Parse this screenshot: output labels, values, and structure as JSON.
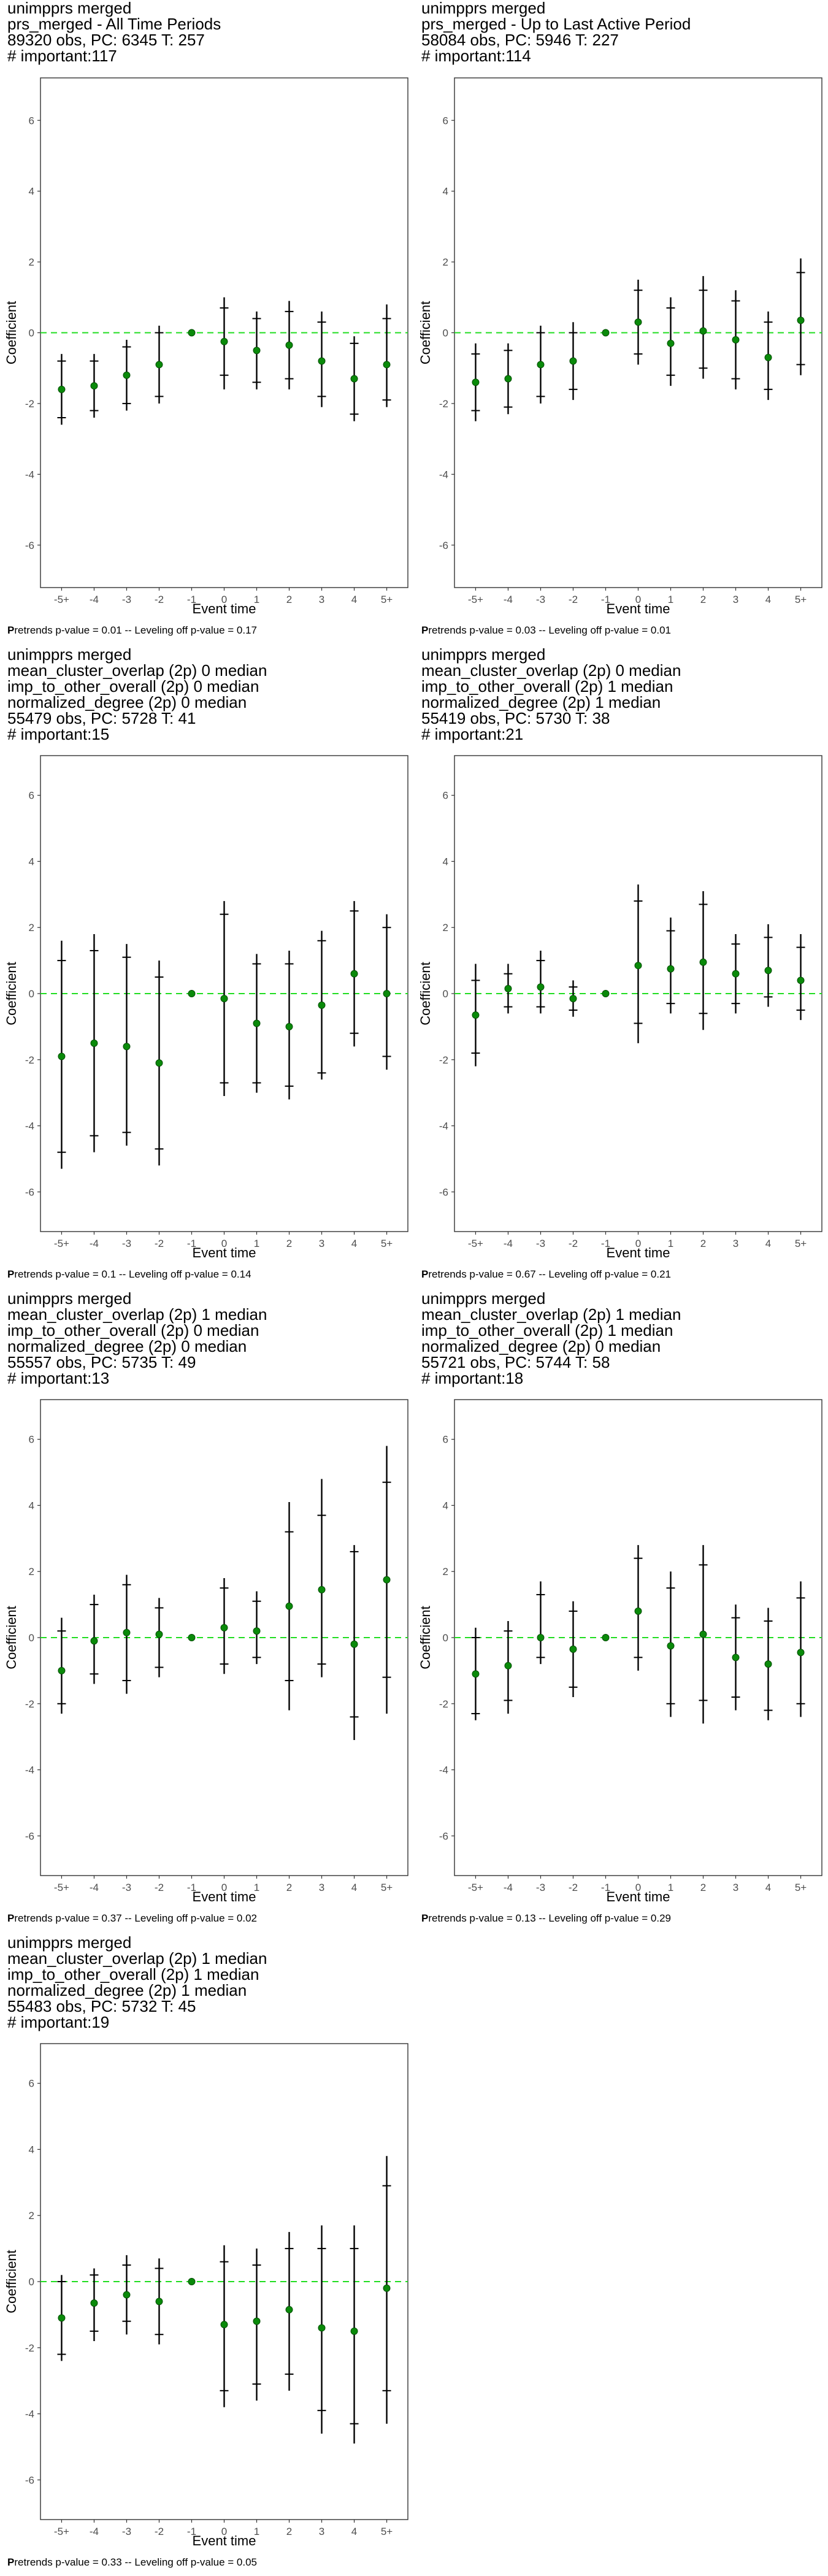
{
  "chart_data": [
    {
      "type": "errorbar",
      "title_lines": [
        " unimpprs merged",
        "prs_merged - All Time Periods",
        "89320 obs, PC: 6345 T: 257",
        "# important:117"
      ],
      "xlabel": "Event time",
      "ylabel": "Coefficient",
      "categories": [
        "-5+",
        "-4",
        "-3",
        "-2",
        "-1",
        "0",
        "1",
        "2",
        "3",
        "4",
        "5+"
      ],
      "yticks": [
        -6,
        -4,
        -2,
        0,
        2,
        4,
        6
      ],
      "ylim": [
        -7.2,
        7.2
      ],
      "estimate": [
        -1.6,
        -1.5,
        -1.2,
        -0.9,
        0,
        -0.25,
        -0.5,
        -0.35,
        -0.8,
        -1.3,
        -0.9
      ],
      "ci95_low": [
        -2.6,
        -2.4,
        -2.2,
        -2.0,
        0,
        -1.6,
        -1.6,
        -1.6,
        -2.1,
        -2.5,
        -2.1
      ],
      "ci95_high": [
        -0.6,
        -0.6,
        -0.2,
        0.2,
        0,
        1.0,
        0.6,
        0.9,
        0.6,
        -0.1,
        0.8
      ],
      "ci90_low": [
        -2.4,
        -2.2,
        -2.0,
        -1.8,
        0,
        -1.2,
        -1.4,
        -1.3,
        -1.8,
        -2.3,
        -1.9
      ],
      "ci90_high": [
        -0.8,
        -0.8,
        -0.4,
        0.0,
        0,
        0.7,
        0.4,
        0.6,
        0.3,
        -0.3,
        0.4
      ],
      "footer_bold": "P",
      "footer": "retrends p-value = 0.01 -- Leveling off p-value = 0.17"
    },
    {
      "type": "errorbar",
      "title_lines": [
        " unimpprs merged",
        "prs_merged - Up to Last Active Period",
        "58084 obs, PC: 5946 T: 227",
        "# important:114"
      ],
      "xlabel": "Event time",
      "ylabel": "Coefficient",
      "categories": [
        "-5+",
        "-4",
        "-3",
        "-2",
        "-1",
        "0",
        "1",
        "2",
        "3",
        "4",
        "5+"
      ],
      "yticks": [
        -6,
        -4,
        -2,
        0,
        2,
        4,
        6
      ],
      "ylim": [
        -7.2,
        7.2
      ],
      "estimate": [
        -1.4,
        -1.3,
        -0.9,
        -0.8,
        0,
        0.3,
        -0.3,
        0.05,
        -0.2,
        -0.7,
        0.35
      ],
      "ci95_low": [
        -2.5,
        -2.3,
        -2.0,
        -1.9,
        0,
        -0.9,
        -1.5,
        -1.3,
        -1.6,
        -1.9,
        -1.2
      ],
      "ci95_high": [
        -0.3,
        -0.3,
        0.2,
        0.3,
        0,
        1.5,
        1.0,
        1.6,
        1.2,
        0.6,
        2.1
      ],
      "ci90_low": [
        -2.2,
        -2.1,
        -1.8,
        -1.6,
        0,
        -0.6,
        -1.2,
        -1.0,
        -1.3,
        -1.6,
        -0.9
      ],
      "ci90_high": [
        -0.6,
        -0.5,
        0.0,
        0.0,
        0,
        1.2,
        0.7,
        1.2,
        0.9,
        0.3,
        1.7
      ],
      "footer_bold": "P",
      "footer": "retrends p-value = 0.03 -- Leveling off p-value = 0.01"
    },
    {
      "type": "errorbar",
      "title_lines": [
        " unimpprs merged",
        "mean_cluster_overlap (2p) 0 median",
        "imp_to_other_overall (2p) 0 median",
        "normalized_degree (2p) 0 median",
        "55479 obs, PC: 5728 T: 41",
        "# important:15"
      ],
      "xlabel": "Event time",
      "ylabel": "Coefficient",
      "categories": [
        "-5+",
        "-4",
        "-3",
        "-2",
        "-1",
        "0",
        "1",
        "2",
        "3",
        "4",
        "5+"
      ],
      "yticks": [
        -6,
        -4,
        -2,
        0,
        2,
        4,
        6
      ],
      "ylim": [
        -7.2,
        7.2
      ],
      "estimate": [
        -1.9,
        -1.5,
        -1.6,
        -2.1,
        0,
        -0.15,
        -0.9,
        -1.0,
        -0.35,
        0.6,
        0.0
      ],
      "ci95_low": [
        -5.3,
        -4.8,
        -4.6,
        -5.2,
        0,
        -3.1,
        -3.0,
        -3.2,
        -2.6,
        -1.6,
        -2.3
      ],
      "ci95_high": [
        1.6,
        1.8,
        1.5,
        1.0,
        0,
        2.8,
        1.2,
        1.3,
        1.9,
        2.8,
        2.4
      ],
      "ci90_low": [
        -4.8,
        -4.3,
        -4.2,
        -4.7,
        0,
        -2.7,
        -2.7,
        -2.8,
        -2.4,
        -1.2,
        -1.9
      ],
      "ci90_high": [
        1.0,
        1.3,
        1.1,
        0.5,
        0,
        2.4,
        0.9,
        0.9,
        1.6,
        2.5,
        2.0
      ],
      "footer_bold": "P",
      "footer": "retrends p-value = 0.1 -- Leveling off p-value = 0.14"
    },
    {
      "type": "errorbar",
      "title_lines": [
        " unimpprs merged",
        "mean_cluster_overlap (2p) 0 median",
        "imp_to_other_overall (2p) 1 median",
        "normalized_degree (2p) 1 median",
        "55419 obs, PC: 5730 T: 38",
        "# important:21"
      ],
      "xlabel": "Event time",
      "ylabel": "Coefficient",
      "categories": [
        "-5+",
        "-4",
        "-3",
        "-2",
        "-1",
        "0",
        "1",
        "2",
        "3",
        "4",
        "5+"
      ],
      "yticks": [
        -6,
        -4,
        -2,
        0,
        2,
        4,
        6
      ],
      "ylim": [
        -7.2,
        7.2
      ],
      "estimate": [
        -0.65,
        0.15,
        0.2,
        -0.15,
        0,
        0.85,
        0.75,
        0.95,
        0.6,
        0.7,
        0.4
      ],
      "ci95_low": [
        -2.2,
        -0.6,
        -0.6,
        -0.7,
        0,
        -1.5,
        -0.6,
        -1.1,
        -0.6,
        -0.4,
        -0.8
      ],
      "ci95_high": [
        0.9,
        0.9,
        1.3,
        0.4,
        0,
        3.3,
        2.3,
        3.1,
        1.8,
        2.1,
        1.8
      ],
      "ci90_low": [
        -1.8,
        -0.4,
        -0.4,
        -0.5,
        0,
        -0.9,
        -0.3,
        -0.6,
        -0.3,
        -0.1,
        -0.5
      ],
      "ci90_high": [
        0.4,
        0.6,
        1.0,
        0.2,
        0,
        2.8,
        1.9,
        2.7,
        1.5,
        1.7,
        1.4
      ],
      "footer_bold": "P",
      "footer": "retrends p-value = 0.67 -- Leveling off p-value = 0.21"
    },
    {
      "type": "errorbar",
      "title_lines": [
        " unimpprs merged",
        "mean_cluster_overlap (2p) 1 median",
        "imp_to_other_overall (2p) 0 median",
        "normalized_degree (2p) 0 median",
        "55557 obs, PC: 5735 T: 49",
        "# important:13"
      ],
      "xlabel": "Event time",
      "ylabel": "Coefficient",
      "categories": [
        "-5+",
        "-4",
        "-3",
        "-2",
        "-1",
        "0",
        "1",
        "2",
        "3",
        "4",
        "5+"
      ],
      "yticks": [
        -6,
        -4,
        -2,
        0,
        2,
        4,
        6
      ],
      "ylim": [
        -7.2,
        7.2
      ],
      "estimate": [
        -1.0,
        -0.1,
        0.15,
        0.1,
        0,
        0.3,
        0.2,
        0.95,
        1.45,
        -0.2,
        1.75
      ],
      "ci95_low": [
        -2.3,
        -1.4,
        -1.7,
        -1.2,
        0,
        -1.1,
        -0.8,
        -2.2,
        -1.2,
        -3.1,
        -2.3
      ],
      "ci95_high": [
        0.6,
        1.3,
        1.9,
        1.2,
        0,
        1.8,
        1.4,
        4.1,
        4.8,
        2.8,
        5.8
      ],
      "ci90_low": [
        -2.0,
        -1.1,
        -1.3,
        -0.9,
        0,
        -0.8,
        -0.6,
        -1.3,
        -0.8,
        -2.4,
        -1.2
      ],
      "ci90_high": [
        0.2,
        1.0,
        1.6,
        0.9,
        0,
        1.5,
        1.1,
        3.2,
        3.7,
        2.6,
        4.7
      ],
      "footer_bold": "P",
      "footer": "retrends p-value = 0.37 -- Leveling off p-value = 0.02"
    },
    {
      "type": "errorbar",
      "title_lines": [
        " unimpprs merged",
        "mean_cluster_overlap (2p) 1 median",
        "imp_to_other_overall (2p) 1 median",
        "normalized_degree (2p) 0 median",
        "55721 obs, PC: 5744 T: 58",
        "# important:18"
      ],
      "xlabel": "Event time",
      "ylabel": "Coefficient",
      "categories": [
        "-5+",
        "-4",
        "-3",
        "-2",
        "-1",
        "0",
        "1",
        "2",
        "3",
        "4",
        "5+"
      ],
      "yticks": [
        -6,
        -4,
        -2,
        0,
        2,
        4,
        6
      ],
      "ylim": [
        -7.2,
        7.2
      ],
      "estimate": [
        -1.1,
        -0.85,
        0.0,
        -0.35,
        0,
        0.8,
        -0.25,
        0.1,
        -0.6,
        -0.8,
        -0.45
      ],
      "ci95_low": [
        -2.5,
        -2.3,
        -0.8,
        -1.8,
        0,
        -1.0,
        -2.4,
        -2.6,
        -2.2,
        -2.5,
        -2.4
      ],
      "ci95_high": [
        0.3,
        0.5,
        1.7,
        1.1,
        0,
        2.8,
        2.0,
        2.8,
        1.0,
        0.9,
        1.7
      ],
      "ci90_low": [
        -2.3,
        -1.9,
        -0.6,
        -1.5,
        0,
        -0.6,
        -2.0,
        -1.9,
        -1.8,
        -2.2,
        -2.0
      ],
      "ci90_high": [
        0.0,
        0.2,
        1.3,
        0.8,
        0,
        2.4,
        1.5,
        2.2,
        0.6,
        0.5,
        1.2
      ],
      "footer_bold": "P",
      "footer": "retrends p-value = 0.13 -- Leveling off p-value = 0.29"
    },
    {
      "type": "errorbar",
      "title_lines": [
        " unimpprs merged",
        "mean_cluster_overlap (2p) 1 median",
        "imp_to_other_overall (2p) 1 median",
        "normalized_degree (2p) 1 median",
        "55483 obs, PC: 5732 T: 45",
        "# important:19"
      ],
      "xlabel": "Event time",
      "ylabel": "Coefficient",
      "categories": [
        "-5+",
        "-4",
        "-3",
        "-2",
        "-1",
        "0",
        "1",
        "2",
        "3",
        "4",
        "5+"
      ],
      "yticks": [
        -6,
        -4,
        -2,
        0,
        2,
        4,
        6
      ],
      "ylim": [
        -7.2,
        7.2
      ],
      "estimate": [
        -1.1,
        -0.65,
        -0.4,
        -0.6,
        0,
        -1.3,
        -1.2,
        -0.85,
        -1.4,
        -1.5,
        -0.2
      ],
      "ci95_low": [
        -2.4,
        -1.8,
        -1.6,
        -1.9,
        0,
        -3.8,
        -3.6,
        -3.3,
        -4.6,
        -4.9,
        -4.3
      ],
      "ci95_high": [
        0.2,
        0.4,
        0.8,
        0.7,
        0,
        1.1,
        1.0,
        1.5,
        1.7,
        1.7,
        3.8
      ],
      "ci90_low": [
        -2.2,
        -1.5,
        -1.2,
        -1.6,
        0,
        -3.3,
        -3.1,
        -2.8,
        -3.9,
        -4.3,
        -3.3
      ],
      "ci90_high": [
        0.0,
        0.2,
        0.5,
        0.4,
        0,
        0.6,
        0.5,
        1.0,
        1.0,
        1.0,
        2.9
      ],
      "footer_bold": "P",
      "footer": "retrends p-value = 0.33 -- Leveling off p-value = 0.05"
    }
  ]
}
